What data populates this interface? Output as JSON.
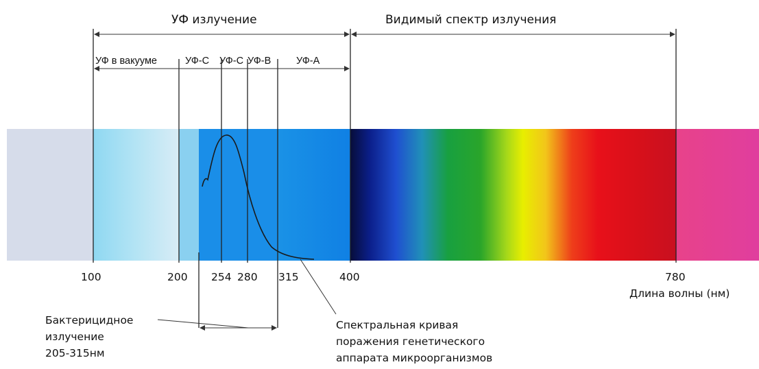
{
  "headers": {
    "uv": "УФ излучение",
    "visible": "Видимый спектр излучения"
  },
  "bands": {
    "vacuum": "УФ в вакууме",
    "uvc": "УФ-С",
    "uvc2": "УФ-С",
    "uvb": "УФ-В",
    "uva": "УФ-А"
  },
  "ticks": {
    "t100": "100",
    "t200": "200",
    "t254": "254",
    "t280": "280",
    "t315": "315",
    "t400": "400",
    "t780": "780"
  },
  "axis_label": "Длина волны (нм)",
  "bactericidal_label": "Бактерицидное\nизлучение\n205-315нм",
  "curve_label": "Спектральная кривая\nпоражения генетического\nаппарата микроорганизмов",
  "colors": {
    "dark_blue": "#0a1a5e",
    "green": "#119a2a",
    "yellow": "#e6ee00",
    "red": "#e8101a",
    "magenta": "#e0409a",
    "uv_blue": "#1490e4",
    "pale": "#d6dcea"
  }
}
